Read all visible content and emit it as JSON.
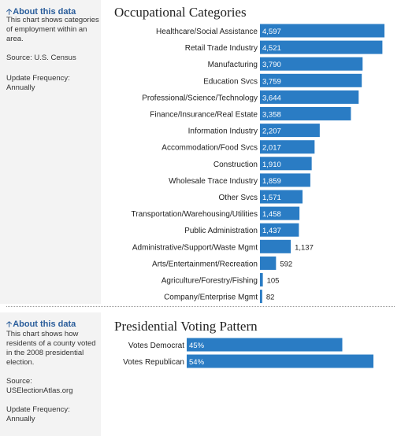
{
  "sections": [
    {
      "about": {
        "link_label": "About this data",
        "description": "This chart shows categories of employment within an area.",
        "source": "Source: U.S. Census",
        "update_label": "Update Frequency:",
        "update_value": "Annually"
      }
    },
    {
      "about": {
        "link_label": "About this data",
        "description": "This chart shows how residents of a county voted in the 2008 presidential election.",
        "source_label": "Source:",
        "source_value": "USElectionAtlas.org",
        "update_label": "Update Frequency:",
        "update_value": "Annually"
      }
    }
  ],
  "colors": {
    "bar": "#2a7cc4",
    "sidebar": "#f3f3f3",
    "link": "#2a5d9b"
  },
  "chart_data": [
    {
      "type": "bar",
      "orientation": "horizontal",
      "title": "Occupational Categories",
      "categories": [
        "Healthcare/Social Assistance",
        "Retail Trade Industry",
        "Manufacturing",
        "Education Svcs",
        "Professional/Science/Technology",
        "Finance/Insurance/Real Estate",
        "Information Industry",
        "Accommodation/Food Svcs",
        "Construction",
        "Wholesale Trace Industry",
        "Other Svcs",
        "Transportation/Warehousing/Utilities",
        "Public Administration",
        "Administrative/Support/Waste Mgmt",
        "Arts/Entertainment/Recreation",
        "Agriculture/Forestry/Fishing",
        "Company/Enterprise Mgmt"
      ],
      "values": [
        4597,
        4521,
        3790,
        3759,
        3644,
        3358,
        2207,
        2017,
        1910,
        1859,
        1571,
        1458,
        1437,
        1137,
        592,
        105,
        82
      ],
      "labels": [
        "4,597",
        "4,521",
        "3,790",
        "3,759",
        "3,644",
        "3,358",
        "2,207",
        "2,017",
        "1,910",
        "1,859",
        "1,571",
        "1,458",
        "1,437",
        "1,137",
        "592",
        "105",
        "82"
      ],
      "xlim": [
        0,
        4597
      ],
      "grid": false
    },
    {
      "type": "bar",
      "orientation": "horizontal",
      "title": "Presidential Voting Pattern",
      "categories": [
        "Votes Democrat",
        "Votes Republican"
      ],
      "values": [
        45,
        54
      ],
      "labels": [
        "45%",
        "54%"
      ],
      "xlim": [
        0,
        54
      ],
      "grid": false
    }
  ]
}
